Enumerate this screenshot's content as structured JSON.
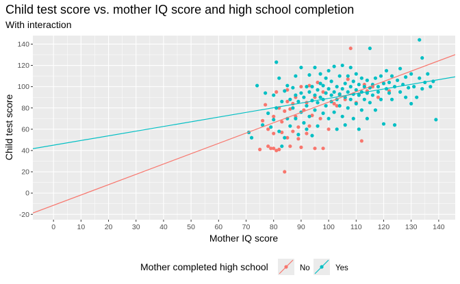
{
  "chart_data": {
    "type": "scatter",
    "title": "Child test score vs. mother IQ score and high school completion",
    "subtitle": "With interaction",
    "xlabel": "Mother IQ score",
    "ylabel": "Child test score",
    "xlim": [
      -7.5,
      146
    ],
    "ylim": [
      -25,
      148
    ],
    "x_ticks": [
      0,
      10,
      20,
      30,
      40,
      50,
      60,
      70,
      80,
      90,
      100,
      110,
      120,
      130,
      140
    ],
    "y_ticks": [
      -20,
      0,
      20,
      40,
      60,
      80,
      100,
      120,
      140
    ],
    "grid": true,
    "legend": {
      "title": "Mother completed high school",
      "placement": "bottom",
      "entries": [
        "No",
        "Yes"
      ]
    },
    "colors": {
      "No": "#F8766D",
      "Yes": "#00BFC4",
      "panel": "#EBEBEB",
      "grid": "#FFFFFF"
    },
    "series": [
      {
        "name": "No",
        "color": "#F8766D",
        "line": {
          "intercept": -11.5,
          "slope": 0.97
        },
        "points": [
          [
            75,
            41
          ],
          [
            76,
            68
          ],
          [
            77,
            83
          ],
          [
            78,
            44
          ],
          [
            78,
            60
          ],
          [
            79,
            42
          ],
          [
            80,
            42
          ],
          [
            80,
            56
          ],
          [
            80,
            72
          ],
          [
            81,
            40
          ],
          [
            81,
            95
          ],
          [
            82,
            80
          ],
          [
            82,
            41
          ],
          [
            83,
            67
          ],
          [
            83,
            57
          ],
          [
            84,
            20
          ],
          [
            84,
            77
          ],
          [
            85,
            52
          ],
          [
            85,
            86
          ],
          [
            85,
            97
          ],
          [
            86,
            44
          ],
          [
            86,
            79
          ],
          [
            87,
            58
          ],
          [
            87,
            84
          ],
          [
            88,
            72
          ],
          [
            88,
            90
          ],
          [
            89,
            51
          ],
          [
            89,
            62
          ],
          [
            90,
            43
          ],
          [
            90,
            100
          ],
          [
            91,
            78
          ],
          [
            92,
            56
          ],
          [
            92,
            85
          ],
          [
            93,
            63
          ],
          [
            93,
            101
          ],
          [
            94,
            73
          ],
          [
            95,
            42
          ],
          [
            95,
            90
          ],
          [
            96,
            104
          ],
          [
            97,
            70
          ],
          [
            98,
            42
          ],
          [
            98,
            95
          ],
          [
            100,
            60
          ],
          [
            102,
            84
          ],
          [
            103,
            82
          ],
          [
            104,
            92
          ],
          [
            106,
            88
          ],
          [
            107,
            107
          ],
          [
            108,
            136
          ],
          [
            110,
            85
          ],
          [
            111,
            93
          ],
          [
            112,
            49
          ],
          [
            113,
            102
          ],
          [
            114,
            96
          ],
          [
            116,
            100
          ],
          [
            118,
            90
          ],
          [
            120,
            103
          ],
          [
            122,
            96
          ]
        ]
      },
      {
        "name": "Yes",
        "color": "#00BFC4",
        "line": {
          "intercept": 45,
          "slope": 0.44
        },
        "points": [
          [
            71,
            57
          ],
          [
            72,
            52
          ],
          [
            74,
            101
          ],
          [
            76,
            64
          ],
          [
            77,
            94
          ],
          [
            78,
            75
          ],
          [
            79,
            62
          ],
          [
            80,
            92
          ],
          [
            80,
            69
          ],
          [
            81,
            80
          ],
          [
            81,
            123
          ],
          [
            82,
            108
          ],
          [
            82,
            58
          ],
          [
            83,
            86
          ],
          [
            83,
            44
          ],
          [
            84,
            96
          ],
          [
            84,
            52
          ],
          [
            85,
            70
          ],
          [
            85,
            101
          ],
          [
            86,
            88
          ],
          [
            86,
            63
          ],
          [
            87,
            99
          ],
          [
            87,
            80
          ],
          [
            88,
            92
          ],
          [
            88,
            70
          ],
          [
            88,
            110
          ],
          [
            89,
            86
          ],
          [
            89,
            55
          ],
          [
            90,
            94
          ],
          [
            90,
            76
          ],
          [
            90,
            118
          ],
          [
            91,
            90
          ],
          [
            91,
            66
          ],
          [
            92,
            100
          ],
          [
            92,
            82
          ],
          [
            92,
            60
          ],
          [
            93,
            95
          ],
          [
            93,
            111
          ],
          [
            93,
            72
          ],
          [
            94,
            87
          ],
          [
            94,
            100
          ],
          [
            94,
            54
          ],
          [
            95,
            92
          ],
          [
            95,
            118
          ],
          [
            95,
            78
          ],
          [
            96,
            97
          ],
          [
            96,
            85
          ],
          [
            96,
            63
          ],
          [
            97,
            103
          ],
          [
            97,
            90
          ],
          [
            97,
            112
          ],
          [
            98,
            88
          ],
          [
            98,
            75
          ],
          [
            98,
            101
          ],
          [
            99,
            94
          ],
          [
            99,
            108
          ],
          [
            99,
            82
          ],
          [
            100,
            98
          ],
          [
            100,
            115
          ],
          [
            100,
            70
          ],
          [
            101,
            92
          ],
          [
            101,
            105
          ],
          [
            101,
            86
          ],
          [
            102,
            119
          ],
          [
            102,
            95
          ],
          [
            102,
            76
          ],
          [
            103,
            100
          ],
          [
            103,
            88
          ],
          [
            103,
            60
          ],
          [
            104,
            110
          ],
          [
            104,
            93
          ],
          [
            104,
            82
          ],
          [
            105,
            98
          ],
          [
            105,
            120
          ],
          [
            105,
            72
          ],
          [
            106,
            103
          ],
          [
            106,
            90
          ],
          [
            106,
            64
          ],
          [
            107,
            95
          ],
          [
            107,
            110
          ],
          [
            107,
            80
          ],
          [
            108,
            100
          ],
          [
            108,
            88
          ],
          [
            108,
            118
          ],
          [
            109,
            93
          ],
          [
            109,
            105
          ],
          [
            109,
            70
          ],
          [
            110,
            97
          ],
          [
            110,
            112
          ],
          [
            110,
            84
          ],
          [
            111,
            102
          ],
          [
            111,
            92
          ],
          [
            111,
            60
          ],
          [
            112,
            95
          ],
          [
            112,
            108
          ],
          [
            112,
            78
          ],
          [
            113,
            100
          ],
          [
            113,
            88
          ],
          [
            114,
            106
          ],
          [
            114,
            94
          ],
          [
            114,
            70
          ],
          [
            115,
            99
          ],
          [
            115,
            136
          ],
          [
            115,
            85
          ],
          [
            116,
            102
          ],
          [
            116,
            92
          ],
          [
            117,
            108
          ],
          [
            117,
            78
          ],
          [
            118,
            100
          ],
          [
            118,
            95
          ],
          [
            119,
            110
          ],
          [
            119,
            88
          ],
          [
            120,
            103
          ],
          [
            120,
            65
          ],
          [
            121,
            98
          ],
          [
            121,
            115
          ],
          [
            122,
            94
          ],
          [
            122,
            104
          ],
          [
            123,
            110
          ],
          [
            123,
            88
          ],
          [
            124,
            100
          ],
          [
            124,
            64
          ],
          [
            125,
            106
          ],
          [
            126,
            95
          ],
          [
            126,
            117
          ],
          [
            127,
            102
          ],
          [
            128,
            90
          ],
          [
            128,
            109
          ],
          [
            129,
            99
          ],
          [
            130,
            84
          ],
          [
            130,
            112
          ],
          [
            131,
            100
          ],
          [
            132,
            90
          ],
          [
            133,
            144
          ],
          [
            133,
            108
          ],
          [
            134,
            127
          ],
          [
            134,
            98
          ],
          [
            135,
            104
          ],
          [
            136,
            112
          ],
          [
            137,
            100
          ],
          [
            138,
            105
          ],
          [
            139,
            69
          ]
        ]
      }
    ]
  }
}
